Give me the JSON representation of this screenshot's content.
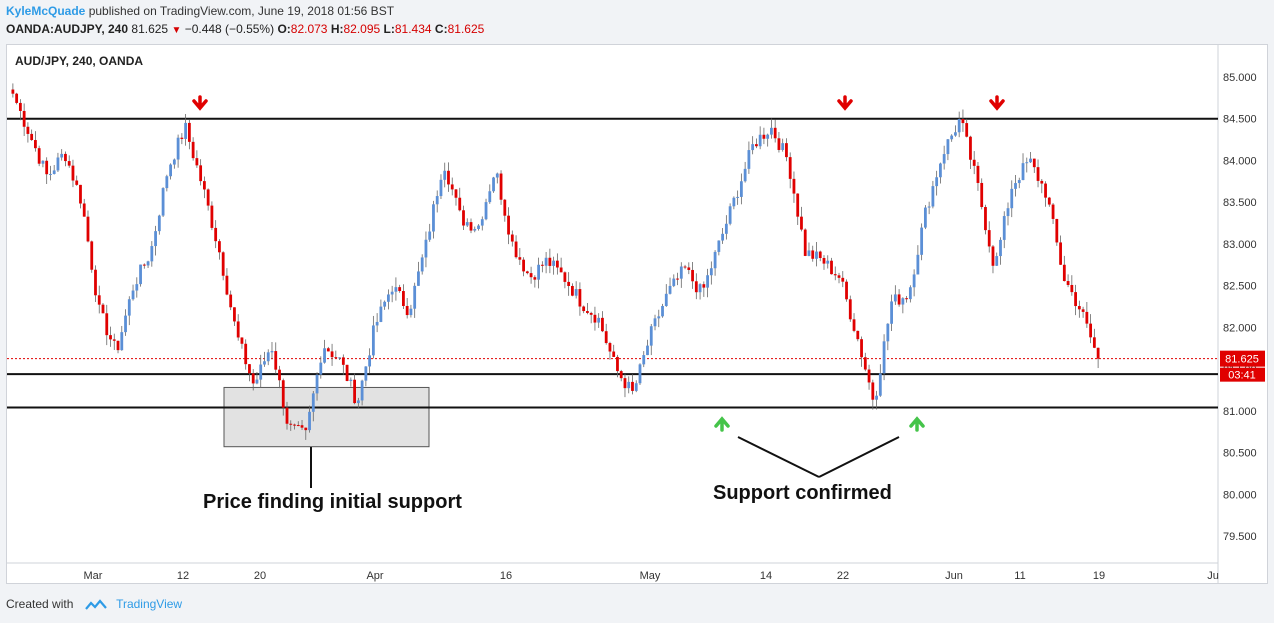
{
  "header": {
    "author": "KyleMcQuade",
    "published_text": "published on TradingView.com, June 19, 2018 01:56 BST",
    "symbol": "OANDA:AUDJPY, 240",
    "last": "81.625",
    "change": "−0.448 (−0.55%)",
    "o_label": "O:",
    "o_value": "82.073",
    "h_label": "H:",
    "h_value": "82.095",
    "l_label": "L:",
    "l_value": "81.434",
    "c_label": "C:",
    "c_value": "81.625"
  },
  "chart_title": "AUD/JPY, 240, OANDA",
  "footer": {
    "created_with": "Created with",
    "brand": "TradingView"
  },
  "annotations": {
    "left_note": "Price finding initial support",
    "right_note": "Support confirmed"
  },
  "price_badge": {
    "price": "81.625",
    "countdown": "03:41"
  },
  "colors": {
    "up": "#5b8fd6",
    "down": "#e00000",
    "arrow_down": "#e00000",
    "arrow_up": "#45c44a",
    "price_line": "#e00000"
  },
  "chart_data": {
    "type": "candlestick",
    "title": "AUD/JPY, 240, OANDA",
    "ylim": [
      79.1,
      85.2
    ],
    "y_ticks": [
      "85.000",
      "84.500",
      "84.000",
      "83.500",
      "83.000",
      "82.500",
      "82.000",
      "81.500",
      "81.000",
      "80.500",
      "80.000",
      "79.500"
    ],
    "x_ticks": [
      "Mar",
      "12",
      "20",
      "Apr",
      "16",
      "May",
      "14",
      "22",
      "Jun",
      "11",
      "19",
      "Ju"
    ],
    "horizontal_levels": [
      84.5,
      81.44,
      81.04
    ],
    "support_zone": {
      "price_range": [
        80.57,
        81.28
      ]
    },
    "current_price": 81.625,
    "series": [
      {
        "points": [
          {
            "date": "Feb 21",
            "close": 84.8
          },
          {
            "date": "Feb 24",
            "close": 84.3
          },
          {
            "date": "Feb 27",
            "close": 83.8
          },
          {
            "date": "Mar 1",
            "close": 84.1
          },
          {
            "date": "Mar 3",
            "close": 83.5
          },
          {
            "date": "Mar 5",
            "close": 82.2
          },
          {
            "date": "Mar 7",
            "close": 81.7
          },
          {
            "date": "Mar 9",
            "close": 82.5
          },
          {
            "date": "Mar 11",
            "close": 82.9
          },
          {
            "date": "Mar 13",
            "close": 83.9
          },
          {
            "date": "Mar 15",
            "close": 84.4
          },
          {
            "date": "Mar 17",
            "close": 83.7
          },
          {
            "date": "Mar 19",
            "close": 82.9
          },
          {
            "date": "Mar 21",
            "close": 81.9
          },
          {
            "date": "Mar 23",
            "close": 81.3
          },
          {
            "date": "Mar 25",
            "close": 81.8
          },
          {
            "date": "Mar 27",
            "close": 80.8
          },
          {
            "date": "Mar 29",
            "close": 80.7
          },
          {
            "date": "Mar 31",
            "close": 81.8
          },
          {
            "date": "Apr 2",
            "close": 81.6
          },
          {
            "date": "Apr 4",
            "close": 81.1
          },
          {
            "date": "Apr 6",
            "close": 82.0
          },
          {
            "date": "Apr 8",
            "close": 82.5
          },
          {
            "date": "Apr 10",
            "close": 82.2
          },
          {
            "date": "Apr 12",
            "close": 83.0
          },
          {
            "date": "Apr 15",
            "close": 84.0
          },
          {
            "date": "Apr 17",
            "close": 83.3
          },
          {
            "date": "Apr 19",
            "close": 83.2
          },
          {
            "date": "Apr 20",
            "close": 83.9
          },
          {
            "date": "Apr 22",
            "close": 83.0
          },
          {
            "date": "Apr 25",
            "close": 82.6
          },
          {
            "date": "Apr 28",
            "close": 82.8
          },
          {
            "date": "May 1",
            "close": 82.6
          },
          {
            "date": "May 4",
            "close": 82.3
          },
          {
            "date": "May 7",
            "close": 82.1
          },
          {
            "date": "May 9",
            "close": 81.5
          },
          {
            "date": "May 10",
            "close": 81.2
          },
          {
            "date": "May 12",
            "close": 81.9
          },
          {
            "date": "May 15",
            "close": 82.4
          },
          {
            "date": "May 18",
            "close": 82.7
          },
          {
            "date": "May 20",
            "close": 82.4
          },
          {
            "date": "May 22",
            "close": 83.0
          },
          {
            "date": "May 24",
            "close": 83.6
          },
          {
            "date": "May 26",
            "close": 84.2
          },
          {
            "date": "May 27",
            "close": 84.4
          },
          {
            "date": "May 28",
            "close": 84.0
          },
          {
            "date": "May 29",
            "close": 82.9
          },
          {
            "date": "May 31",
            "close": 82.8
          },
          {
            "date": "Jun 2",
            "close": 82.6
          },
          {
            "date": "Jun 4",
            "close": 81.9
          },
          {
            "date": "Jun 5",
            "close": 81.1
          },
          {
            "date": "Jun 6",
            "close": 82.3
          },
          {
            "date": "Jun 8",
            "close": 82.4
          },
          {
            "date": "Jun 10",
            "close": 83.4
          },
          {
            "date": "Jun 12",
            "close": 84.1
          },
          {
            "date": "Jun 14",
            "close": 84.5
          },
          {
            "date": "Jun 16",
            "close": 83.7
          },
          {
            "date": "Jun 17",
            "close": 82.7
          },
          {
            "date": "Jun 19",
            "close": 83.7
          },
          {
            "date": "Jun 21",
            "close": 84.0
          },
          {
            "date": "Jun 24",
            "close": 83.6
          },
          {
            "date": "Jun 26",
            "close": 82.6
          },
          {
            "date": "Jun 28",
            "close": 82.2
          },
          {
            "date": "Jun 29",
            "close": 81.625
          }
        ]
      }
    ]
  }
}
